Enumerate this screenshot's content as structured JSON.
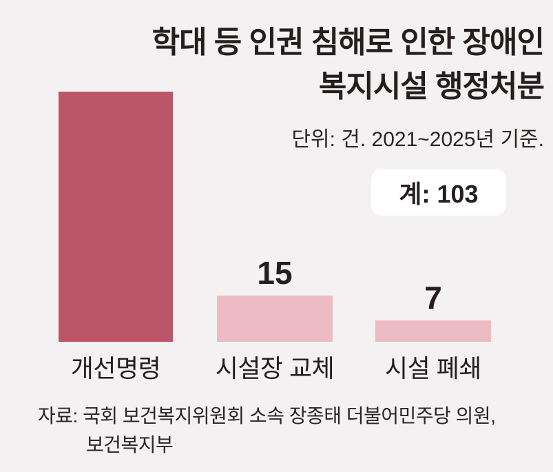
{
  "header": {
    "title_line1": "학대 등 인권 침해로 인한 장애인",
    "title_line2": "복지시설 행정처분",
    "subtitle": "단위: 건. 2021~2025년 기준.",
    "total_badge": "계: 103"
  },
  "source": {
    "line1": "자료: 국회 보건복지위원회 소속 장종태 더불어민주당 의원,",
    "line2": "보건복지부"
  },
  "colors": {
    "background": "#f3f1f1",
    "bar_primary": "#bb5568",
    "bar_secondary": "#ecbbc4",
    "text": "#241e1e",
    "value_inside": "#ffffff",
    "badge_background": "#ffffff"
  },
  "chart_data": {
    "type": "bar",
    "title": "학대 등 인권 침해로 인한 장애인 복지시설 행정처분",
    "subtitle": "단위: 건. 2021~2025년 기준.",
    "unit": "건",
    "period": "2021~2025년",
    "total": 103,
    "total_label": "계: 103",
    "categories": [
      "개선명령",
      "시설장 교체",
      "시설 폐쇄"
    ],
    "values": [
      81,
      15,
      7
    ],
    "bars": [
      {
        "category": "개선명령",
        "value": 81,
        "color": "#bb5568",
        "value_inside": true,
        "value_color": "#ffffff"
      },
      {
        "category": "시설장 교체",
        "value": 15,
        "color": "#ecbbc4",
        "value_inside": false,
        "value_color": "#241e1e"
      },
      {
        "category": "시설 폐쇄",
        "value": 7,
        "color": "#ecbbc4",
        "value_inside": false,
        "value_color": "#241e1e"
      }
    ],
    "ylim": [
      0,
      81
    ],
    "grid": false,
    "legend": false,
    "orientation": "vertical",
    "source": "자료: 국회 보건복지위원회 소속 장종태 더불어민주당 의원, 보건복지부"
  }
}
